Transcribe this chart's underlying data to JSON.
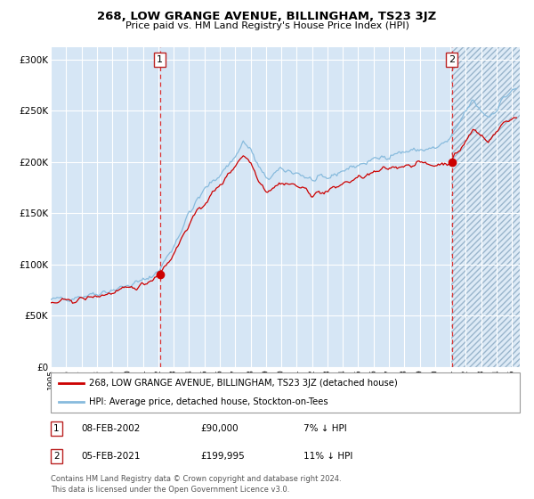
{
  "title": "268, LOW GRANGE AVENUE, BILLINGHAM, TS23 3JZ",
  "subtitle": "Price paid vs. HM Land Registry's House Price Index (HPI)",
  "ylabel_ticks": [
    "£0",
    "£50K",
    "£100K",
    "£150K",
    "£200K",
    "£250K",
    "£300K"
  ],
  "ytick_values": [
    0,
    50000,
    100000,
    150000,
    200000,
    250000,
    300000
  ],
  "ylim": [
    0,
    312000
  ],
  "xlim_start": 1995.0,
  "xlim_end": 2025.5,
  "bg_color": "#d6e6f5",
  "grid_color": "#ffffff",
  "red_line_color": "#cc0000",
  "blue_line_color": "#88bbdd",
  "dashed_color": "#dd3333",
  "point1_x": 2002.1,
  "point1_y": 90000,
  "point2_x": 2021.1,
  "point2_y": 199995,
  "legend_label_red": "268, LOW GRANGE AVENUE, BILLINGHAM, TS23 3JZ (detached house)",
  "legend_label_blue": "HPI: Average price, detached house, Stockton-on-Tees",
  "table_row1": [
    "1",
    "08-FEB-2002",
    "£90,000",
    "7% ↓ HPI"
  ],
  "table_row2": [
    "2",
    "05-FEB-2021",
    "£199,995",
    "11% ↓ HPI"
  ],
  "footer": "Contains HM Land Registry data © Crown copyright and database right 2024.\nThis data is licensed under the Open Government Licence v3.0.",
  "xtick_years": [
    1995,
    1996,
    1997,
    1998,
    1999,
    2000,
    2001,
    2002,
    2003,
    2004,
    2005,
    2006,
    2007,
    2008,
    2009,
    2010,
    2011,
    2012,
    2013,
    2014,
    2015,
    2016,
    2017,
    2018,
    2019,
    2020,
    2021,
    2022,
    2023,
    2024,
    2025
  ]
}
